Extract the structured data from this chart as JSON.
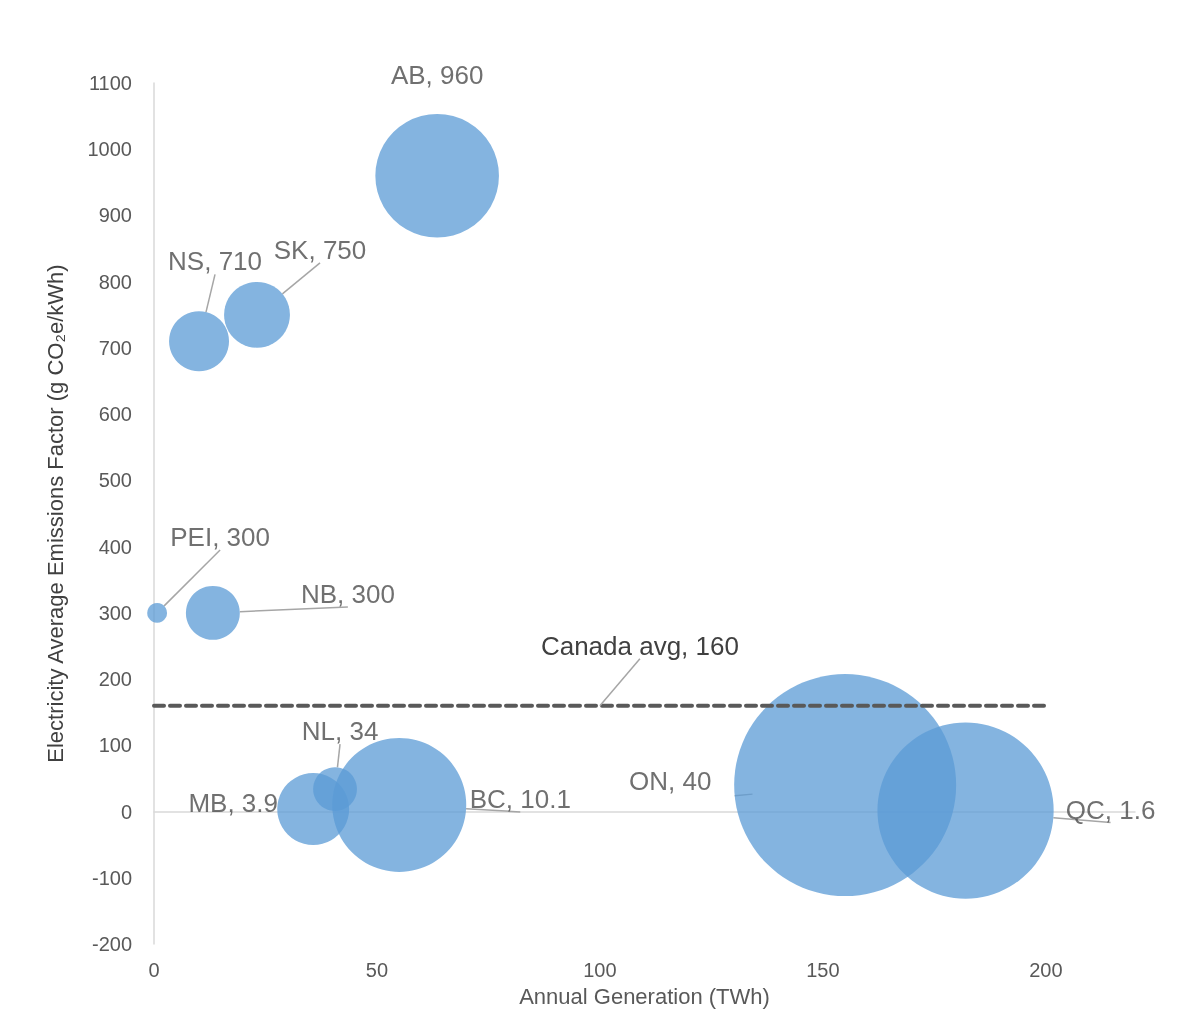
{
  "chart_data": {
    "type": "bubble",
    "xlabel": "Annual Generation (TWh)",
    "ylabel": "Electricity Average Emissions Factor (g CO₂e/kWh)",
    "xlim": [
      0,
      220
    ],
    "xticks": [
      0,
      50,
      100,
      150,
      200
    ],
    "ylim": [
      -200,
      1100
    ],
    "yticks": [
      -200,
      -100,
      0,
      100,
      200,
      300,
      400,
      500,
      600,
      700,
      800,
      900,
      1000,
      1100
    ],
    "series": [
      {
        "type": "bubble",
        "color": "#5b9bd5",
        "x": [
          0.7,
          13.2,
          10.1,
          23.1,
          63.5,
          35.7,
          40.6,
          55,
          155,
          182
        ],
        "values": [
          300,
          300,
          710,
          750,
          960,
          3.9,
          34,
          10.1,
          40,
          1.6
        ],
        "sizes": [
          0.008,
          0.059,
          0.073,
          0.088,
          0.31,
          0.105,
          0.039,
          0.364,
          1,
          0.63
        ],
        "value_labels": [
          "PEI, 300",
          "NB, 300",
          "NS, 710",
          "SK, 750",
          "AB, 960",
          "MB, 3.9",
          "NL, 34",
          "BC, 10.1",
          "ON, 40",
          "QC, 1.6"
        ]
      },
      {
        "type": "line",
        "color": "#595959",
        "line_style": "dashed",
        "marker": "none",
        "x": [
          0,
          100,
          200
        ],
        "values": [
          160,
          160,
          160
        ],
        "value_labels": [
          null,
          "Canada avg, 160",
          null
        ]
      }
    ]
  }
}
